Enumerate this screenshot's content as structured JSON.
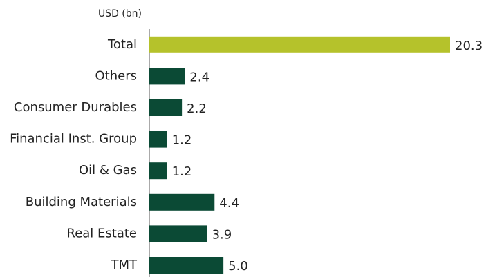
{
  "chart_data": {
    "type": "hbar",
    "axis_label": "USD (bn)",
    "categories": [
      "Total",
      "Others",
      "Consumer Durables",
      "Financial Inst. Group",
      "Oil & Gas",
      "Building Materials",
      "Real Estate",
      "TMT"
    ],
    "values": [
      20.3,
      2.4,
      2.2,
      1.2,
      1.2,
      4.4,
      3.9,
      5.0
    ],
    "value_labels": [
      "20.3",
      "2.4",
      "2.2",
      "1.2",
      "1.2",
      "4.4",
      "3.9",
      "5.0"
    ],
    "colors": [
      "#b5c22b",
      "#0b4a35",
      "#0b4a35",
      "#0b4a35",
      "#0b4a35",
      "#0b4a35",
      "#0b4a35",
      "#0b4a35"
    ]
  }
}
